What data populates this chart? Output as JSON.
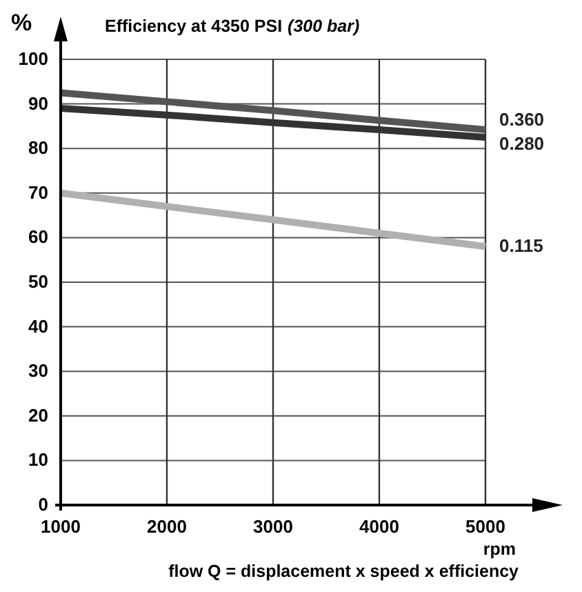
{
  "chart_data": {
    "type": "line",
    "title": "Efficiency at 4350 PSI",
    "subtitle": "(300 bar)",
    "ylabel": "%",
    "xlabel": "rpm",
    "annotations": [
      "flow Q = displacement x speed x efficiency"
    ],
    "x": [
      1000,
      2000,
      3000,
      4000,
      5000
    ],
    "xlim": [
      1000,
      5000
    ],
    "xticks": [
      1000,
      2000,
      3000,
      4000,
      5000
    ],
    "ylim": [
      0,
      100
    ],
    "yticks": [
      0,
      10,
      20,
      30,
      40,
      50,
      60,
      70,
      80,
      90,
      100
    ],
    "grid": true,
    "series": [
      {
        "name": "0.360",
        "color": "#555555",
        "values": [
          92.5,
          90.5,
          88.5,
          86.3,
          84.2
        ]
      },
      {
        "name": "0.280",
        "color": "#333333",
        "values": [
          89,
          87.5,
          85.8,
          84.2,
          82.5
        ]
      },
      {
        "name": "0.115",
        "color": "#b0b0b0",
        "values": [
          70,
          67,
          64,
          61,
          58
        ]
      }
    ]
  }
}
